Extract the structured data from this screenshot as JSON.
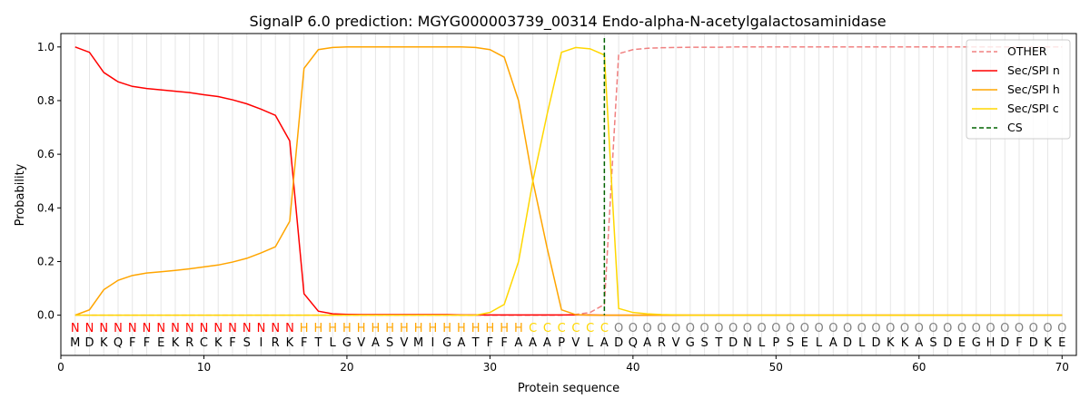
{
  "chart_data": {
    "type": "line",
    "title": "SignalP 6.0 prediction: MGYG000003739_00314 Endo-alpha-N-acetylgalactosaminidase",
    "xlabel": "Protein sequence",
    "ylabel": "Probability",
    "xlim": [
      0,
      71
    ],
    "ylim": [
      -0.15,
      1.05
    ],
    "xticks": [
      0,
      10,
      20,
      30,
      40,
      50,
      60,
      70
    ],
    "yticks": [
      "0.0",
      "0.2",
      "0.4",
      "0.6",
      "0.8",
      "1.0"
    ],
    "legend_position": "top-right",
    "grid": "vertical lines at each residue",
    "sequence": "MDKQFFEKRCKFSIRKFTLGVASVMIGATFFAAAPVLADQARVGSTDNLPSELADLDKKASDEGHDFDKE",
    "labels": "NNNNNNNNNNNNNNNNHHHHHHHHHHHHHHHHCCCCCCOOOOOOOOOOOOOOOOOOOOOOOOOOOOOOOO",
    "label_colors": {
      "N": "#ff0000",
      "H": "#ffa500",
      "C": "#ffd700",
      "O": "#808080"
    },
    "cs_position": 38,
    "series": [
      {
        "name": "OTHER",
        "color": "#f08080",
        "dash": true,
        "values": [
          0,
          0,
          0,
          0,
          0,
          0,
          0,
          0,
          0,
          0,
          0,
          0,
          0,
          0,
          0,
          0,
          0,
          0,
          0,
          0,
          0,
          0,
          0,
          0,
          0,
          0,
          0,
          0,
          0,
          0,
          0,
          0,
          0,
          0,
          0,
          0.003,
          0.01,
          0.04,
          0.975,
          0.99,
          0.995,
          0.997,
          0.998,
          0.999,
          0.999,
          0.999,
          1,
          1,
          1,
          1,
          1,
          1,
          1,
          1,
          1,
          1,
          1,
          1,
          1,
          1,
          1,
          1,
          1,
          1,
          1,
          1,
          1,
          1,
          1,
          1
        ]
      },
      {
        "name": "Sec/SPI n",
        "color": "#ff0000",
        "values": [
          1.0,
          0.98,
          0.905,
          0.87,
          0.853,
          0.845,
          0.84,
          0.835,
          0.83,
          0.822,
          0.815,
          0.803,
          0.788,
          0.768,
          0.745,
          0.65,
          0.08,
          0.015,
          0.005,
          0.003,
          0.002,
          0.002,
          0.002,
          0.002,
          0.002,
          0.002,
          0.002,
          0.001,
          0.001,
          0.001,
          0.001,
          0.001,
          0.001,
          0.001,
          0.001,
          0.001,
          0.001,
          0,
          0,
          0,
          0,
          0,
          0,
          0,
          0,
          0,
          0,
          0,
          0,
          0,
          0,
          0,
          0,
          0,
          0,
          0,
          0,
          0,
          0,
          0,
          0,
          0,
          0,
          0,
          0,
          0,
          0,
          0,
          0,
          0
        ]
      },
      {
        "name": "Sec/SPI h",
        "color": "#ffa500",
        "values": [
          0,
          0.02,
          0.095,
          0.13,
          0.148,
          0.157,
          0.162,
          0.167,
          0.173,
          0.18,
          0.187,
          0.198,
          0.212,
          0.232,
          0.255,
          0.35,
          0.92,
          0.99,
          0.998,
          1,
          1,
          1,
          1,
          1,
          1,
          1,
          1,
          1,
          0.998,
          0.99,
          0.962,
          0.8,
          0.5,
          0.25,
          0.02,
          0.002,
          0,
          0,
          0,
          0,
          0,
          0,
          0,
          0,
          0,
          0,
          0,
          0,
          0,
          0,
          0,
          0,
          0,
          0,
          0,
          0,
          0,
          0,
          0,
          0,
          0,
          0,
          0,
          0,
          0,
          0,
          0,
          0,
          0,
          0
        ]
      },
      {
        "name": "Sec/SPI c",
        "color": "#ffd700",
        "values": [
          0,
          0,
          0,
          0,
          0,
          0,
          0,
          0,
          0,
          0,
          0,
          0,
          0,
          0,
          0,
          0,
          0,
          0,
          0,
          0,
          0,
          0,
          0,
          0,
          0,
          0,
          0,
          0,
          0,
          0.01,
          0.04,
          0.2,
          0.5,
          0.75,
          0.98,
          0.998,
          0.993,
          0.97,
          0.025,
          0.01,
          0.005,
          0.002,
          0.001,
          0,
          0,
          0,
          0,
          0,
          0,
          0,
          0,
          0,
          0,
          0,
          0,
          0,
          0,
          0,
          0,
          0,
          0,
          0,
          0,
          0,
          0,
          0,
          0,
          0,
          0,
          0
        ]
      },
      {
        "name": "CS",
        "color": "#006400",
        "dash": true,
        "vertical": true
      }
    ]
  }
}
